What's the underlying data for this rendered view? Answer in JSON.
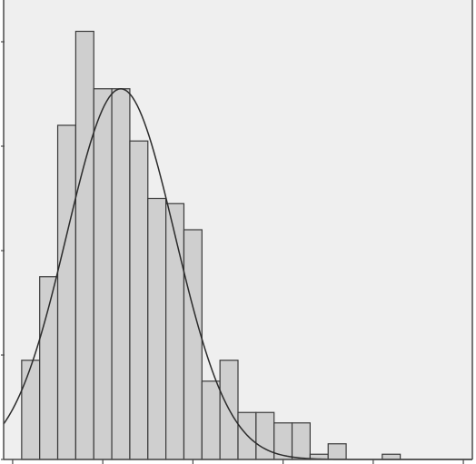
{
  "chart_data": {
    "type": "bar",
    "title": "",
    "xlabel": "",
    "ylabel": "",
    "x_range": [
      -0.5,
      25.5
    ],
    "ylim": [
      0,
      88
    ],
    "grid": false,
    "legend": "none",
    "bins": [
      {
        "x": 1,
        "value": 19
      },
      {
        "x": 2,
        "value": 35
      },
      {
        "x": 3,
        "value": 64
      },
      {
        "x": 4,
        "value": 82
      },
      {
        "x": 5,
        "value": 71
      },
      {
        "x": 6,
        "value": 71
      },
      {
        "x": 7,
        "value": 61
      },
      {
        "x": 8,
        "value": 50
      },
      {
        "x": 9,
        "value": 49
      },
      {
        "x": 10,
        "value": 44
      },
      {
        "x": 11,
        "value": 15
      },
      {
        "x": 12,
        "value": 19
      },
      {
        "x": 13,
        "value": 9
      },
      {
        "x": 14,
        "value": 9
      },
      {
        "x": 15,
        "value": 7
      },
      {
        "x": 16,
        "value": 7
      },
      {
        "x": 17,
        "value": 1
      },
      {
        "x": 18,
        "value": 3
      },
      {
        "x": 19,
        "value": 0
      },
      {
        "x": 20,
        "value": 0
      },
      {
        "x": 21,
        "value": 1
      }
    ],
    "fit_curve": {
      "type": "normal",
      "peak_x": 6.0,
      "peak_y": 71,
      "sd": 3.0
    },
    "colors": {
      "background": "#efefef",
      "bar_fill": "#cfcfcf",
      "bar_stroke": "#3a3a3a",
      "curve": "#2b2b2b",
      "axis": "#4a4a4a"
    }
  }
}
